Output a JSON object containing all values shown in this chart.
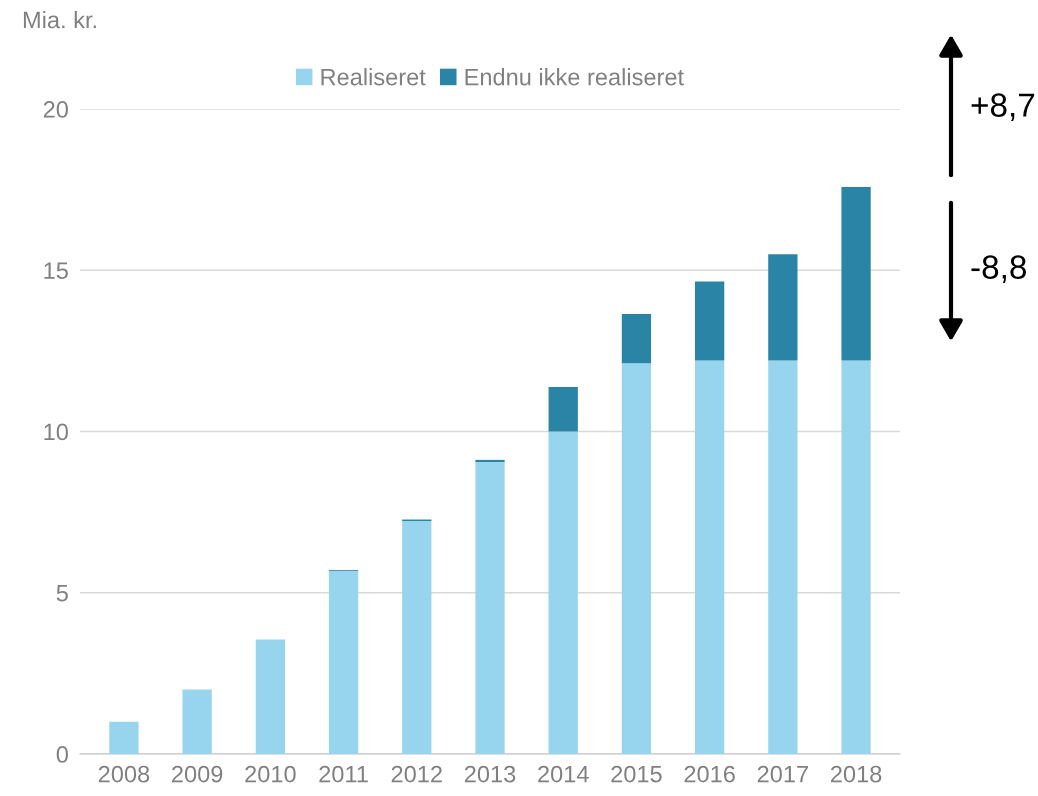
{
  "chart_data": {
    "type": "bar",
    "stacked": true,
    "ylabel": "Mia. kr.",
    "categories": [
      "2008",
      "2009",
      "2010",
      "2011",
      "2012",
      "2013",
      "2014",
      "2015",
      "2016",
      "2017",
      "2018"
    ],
    "series": [
      {
        "name": "Realiseret",
        "color": "#97d5ef",
        "values": [
          1.0,
          2.0,
          3.55,
          5.67,
          7.22,
          9.05,
          10.0,
          12.12,
          12.2,
          12.2,
          12.2
        ]
      },
      {
        "name": "Endnu ikke realiseret",
        "color": "#2a84a6",
        "values": [
          0,
          0,
          0,
          0.03,
          0.05,
          0.07,
          1.38,
          1.52,
          2.45,
          3.3,
          5.38
        ]
      }
    ],
    "ylim": [
      0,
      20
    ],
    "yticks": [
      0,
      5,
      10,
      15,
      20
    ],
    "grid": "y",
    "legend": "top",
    "annotations": [
      "+8,7",
      "-8,8"
    ]
  }
}
